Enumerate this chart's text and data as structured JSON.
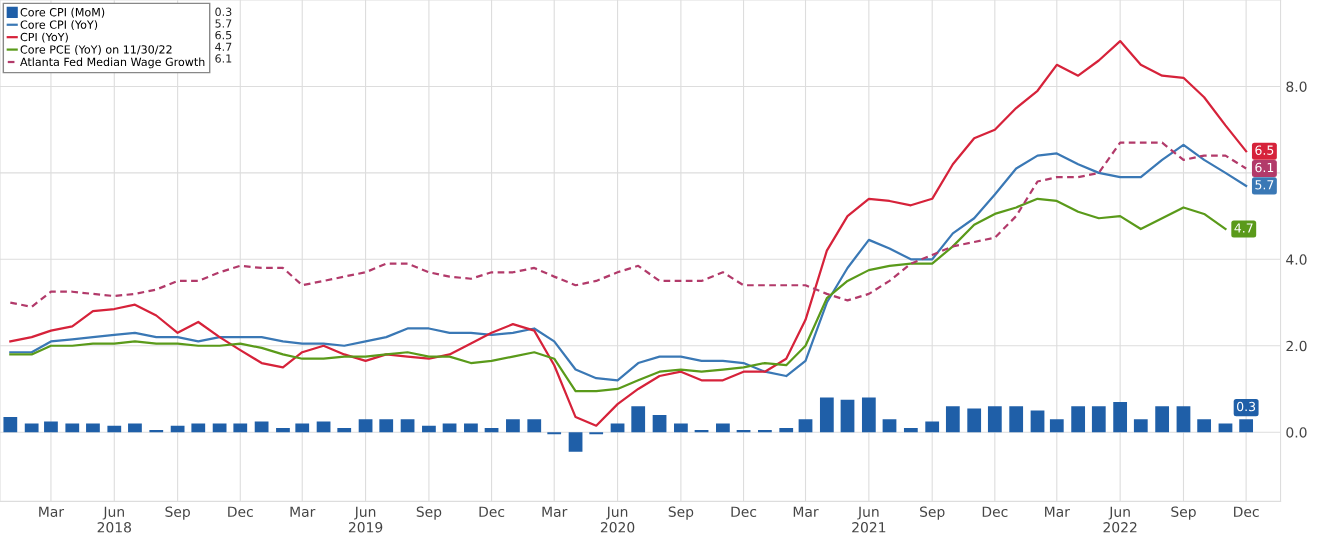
{
  "chart_data": {
    "type": "line",
    "x": [
      "2018-01",
      "2018-02",
      "2018-03",
      "2018-04",
      "2018-05",
      "2018-06",
      "2018-07",
      "2018-08",
      "2018-09",
      "2018-10",
      "2018-11",
      "2018-12",
      "2019-01",
      "2019-02",
      "2019-03",
      "2019-04",
      "2019-05",
      "2019-06",
      "2019-07",
      "2019-08",
      "2019-09",
      "2019-10",
      "2019-11",
      "2019-12",
      "2020-01",
      "2020-02",
      "2020-03",
      "2020-04",
      "2020-05",
      "2020-06",
      "2020-07",
      "2020-08",
      "2020-09",
      "2020-10",
      "2020-11",
      "2020-12",
      "2021-01",
      "2021-02",
      "2021-03",
      "2021-04",
      "2021-05",
      "2021-06",
      "2021-07",
      "2021-08",
      "2021-09",
      "2021-10",
      "2021-11",
      "2021-12",
      "2022-01",
      "2022-02",
      "2022-03",
      "2022-04",
      "2022-05",
      "2022-06",
      "2022-07",
      "2022-08",
      "2022-09",
      "2022-10",
      "2022-11",
      "2022-12"
    ],
    "series": [
      {
        "name": "Core CPI (MoM)",
        "type": "bar",
        "color": "#1f5fa8",
        "values": [
          0.35,
          0.2,
          0.25,
          0.2,
          0.2,
          0.15,
          0.2,
          0.05,
          0.15,
          0.2,
          0.2,
          0.2,
          0.25,
          0.1,
          0.2,
          0.25,
          0.1,
          0.3,
          0.3,
          0.3,
          0.15,
          0.2,
          0.2,
          0.1,
          0.3,
          0.3,
          -0.05,
          -0.45,
          -0.05,
          0.2,
          0.6,
          0.4,
          0.2,
          0.05,
          0.2,
          0.05,
          0.05,
          0.1,
          0.3,
          0.8,
          0.75,
          0.8,
          0.3,
          0.1,
          0.25,
          0.6,
          0.55,
          0.6,
          0.6,
          0.5,
          0.3,
          0.6,
          0.6,
          0.7,
          0.3,
          0.6,
          0.6,
          0.3,
          0.2,
          0.3
        ],
        "value_labels": [
          null,
          null,
          null,
          null,
          null,
          null,
          null,
          null,
          null,
          null,
          null,
          null,
          null,
          null,
          null,
          null,
          null,
          null,
          null,
          null,
          null,
          null,
          null,
          null,
          null,
          null,
          null,
          null,
          null,
          null,
          null,
          null,
          null,
          null,
          null,
          null,
          null,
          null,
          null,
          null,
          null,
          null,
          null,
          null,
          null,
          null,
          null,
          null,
          null,
          null,
          null,
          null,
          null,
          null,
          null,
          null,
          null,
          null,
          null,
          "0.3"
        ]
      },
      {
        "name": "Core CPI (YoY)",
        "color": "#3a78b5",
        "line_style": "solid",
        "values": [
          1.85,
          1.85,
          2.1,
          2.15,
          2.2,
          2.25,
          2.3,
          2.2,
          2.2,
          2.1,
          2.2,
          2.2,
          2.2,
          2.1,
          2.05,
          2.05,
          2.0,
          2.1,
          2.2,
          2.4,
          2.4,
          2.3,
          2.3,
          2.25,
          2.3,
          2.4,
          2.1,
          1.45,
          1.25,
          1.2,
          1.6,
          1.75,
          1.75,
          1.65,
          1.65,
          1.6,
          1.4,
          1.3,
          1.65,
          3.0,
          3.8,
          4.45,
          4.25,
          4.0,
          4.0,
          4.6,
          4.95,
          5.5,
          6.1,
          6.4,
          6.45,
          6.2,
          6.0,
          5.9,
          5.9,
          6.3,
          6.65,
          6.3,
          6.0,
          5.7
        ],
        "value_labels": [
          null,
          null,
          null,
          null,
          null,
          null,
          null,
          null,
          null,
          null,
          null,
          null,
          null,
          null,
          null,
          null,
          null,
          null,
          null,
          null,
          null,
          null,
          null,
          null,
          null,
          null,
          null,
          null,
          null,
          null,
          null,
          null,
          null,
          null,
          null,
          null,
          null,
          null,
          null,
          null,
          null,
          null,
          null,
          null,
          null,
          null,
          null,
          null,
          null,
          null,
          null,
          null,
          null,
          null,
          null,
          null,
          null,
          null,
          null,
          "5.7"
        ]
      },
      {
        "name": "CPI (YoY)",
        "color": "#d6223a",
        "line_style": "solid",
        "values": [
          2.1,
          2.2,
          2.35,
          2.45,
          2.8,
          2.85,
          2.95,
          2.7,
          2.3,
          2.55,
          2.2,
          1.9,
          1.6,
          1.5,
          1.85,
          2.0,
          1.8,
          1.65,
          1.8,
          1.75,
          1.7,
          1.8,
          2.05,
          2.3,
          2.5,
          2.35,
          1.55,
          0.35,
          0.15,
          0.65,
          1.0,
          1.3,
          1.4,
          1.2,
          1.2,
          1.4,
          1.4,
          1.7,
          2.6,
          4.2,
          5.0,
          5.4,
          5.35,
          5.25,
          5.4,
          6.2,
          6.8,
          7.0,
          7.5,
          7.9,
          8.5,
          8.25,
          8.6,
          9.05,
          8.5,
          8.25,
          8.2,
          7.75,
          7.1,
          6.5
        ],
        "value_labels": [
          null,
          null,
          null,
          null,
          null,
          null,
          null,
          null,
          null,
          null,
          null,
          null,
          null,
          null,
          null,
          null,
          null,
          null,
          null,
          null,
          null,
          null,
          null,
          null,
          null,
          null,
          null,
          null,
          null,
          null,
          null,
          null,
          null,
          null,
          null,
          null,
          null,
          null,
          null,
          null,
          null,
          null,
          null,
          null,
          null,
          null,
          null,
          null,
          null,
          null,
          null,
          null,
          null,
          null,
          null,
          null,
          null,
          null,
          null,
          "6.5"
        ]
      },
      {
        "name": "Core PCE (YoY) on 11/30/22",
        "color": "#5a9a1a",
        "line_style": "solid",
        "values": [
          1.8,
          1.8,
          2.0,
          2.0,
          2.05,
          2.05,
          2.1,
          2.05,
          2.05,
          2.0,
          2.0,
          2.05,
          1.95,
          1.8,
          1.7,
          1.7,
          1.75,
          1.75,
          1.8,
          1.85,
          1.75,
          1.75,
          1.6,
          1.65,
          1.75,
          1.85,
          1.7,
          0.95,
          0.95,
          1.0,
          1.2,
          1.4,
          1.45,
          1.4,
          1.45,
          1.5,
          1.6,
          1.55,
          2.0,
          3.1,
          3.5,
          3.75,
          3.85,
          3.9,
          3.9,
          4.3,
          4.8,
          5.05,
          5.2,
          5.4,
          5.35,
          5.1,
          4.95,
          5.0,
          4.7,
          4.95,
          5.2,
          5.05,
          4.7,
          null
        ],
        "value_labels": [
          null,
          null,
          null,
          null,
          null,
          null,
          null,
          null,
          null,
          null,
          null,
          null,
          null,
          null,
          null,
          null,
          null,
          null,
          null,
          null,
          null,
          null,
          null,
          null,
          null,
          null,
          null,
          null,
          null,
          null,
          null,
          null,
          null,
          null,
          null,
          null,
          null,
          null,
          null,
          null,
          null,
          null,
          null,
          null,
          null,
          null,
          null,
          null,
          null,
          null,
          null,
          null,
          null,
          null,
          null,
          null,
          null,
          null,
          "4.7",
          null
        ]
      },
      {
        "name": "Atlanta Fed Median Wage Growth",
        "color": "#b23a6a",
        "line_style": "dashed",
        "values": [
          3.0,
          2.9,
          3.25,
          3.25,
          3.2,
          3.15,
          3.2,
          3.3,
          3.5,
          3.5,
          3.7,
          3.85,
          3.8,
          3.8,
          3.4,
          3.5,
          3.6,
          3.7,
          3.9,
          3.9,
          3.7,
          3.6,
          3.55,
          3.7,
          3.7,
          3.8,
          3.6,
          3.4,
          3.5,
          3.7,
          3.85,
          3.5,
          3.5,
          3.5,
          3.7,
          3.4,
          3.4,
          3.4,
          3.4,
          3.2,
          3.05,
          3.2,
          3.5,
          3.9,
          4.1,
          4.3,
          4.4,
          4.5,
          5.0,
          5.8,
          5.9,
          5.9,
          6.0,
          6.7,
          6.7,
          6.7,
          6.3,
          6.4,
          6.4,
          6.1
        ],
        "value_labels": [
          null,
          null,
          null,
          null,
          null,
          null,
          null,
          null,
          null,
          null,
          null,
          null,
          null,
          null,
          null,
          null,
          null,
          null,
          null,
          null,
          null,
          null,
          null,
          null,
          null,
          null,
          null,
          null,
          null,
          null,
          null,
          null,
          null,
          null,
          null,
          null,
          null,
          null,
          null,
          null,
          null,
          null,
          null,
          null,
          null,
          null,
          null,
          null,
          null,
          null,
          null,
          null,
          null,
          null,
          null,
          null,
          null,
          null,
          null,
          "6.1"
        ]
      }
    ],
    "xlim": [
      "2017-12-17",
      "2023-01-20"
    ],
    "xticks": [
      {
        "value": "2018-03",
        "label": "Mar"
      },
      {
        "value": "2018-06",
        "label": "Jun\n2018"
      },
      {
        "value": "2018-09",
        "label": "Sep"
      },
      {
        "value": "2018-12",
        "label": "Dec"
      },
      {
        "value": "2019-03",
        "label": "Mar"
      },
      {
        "value": "2019-06",
        "label": "Jun\n2019"
      },
      {
        "value": "2019-09",
        "label": "Sep"
      },
      {
        "value": "2019-12",
        "label": "Dec"
      },
      {
        "value": "2020-03",
        "label": "Mar"
      },
      {
        "value": "2020-06",
        "label": "Jun\n2020"
      },
      {
        "value": "2020-09",
        "label": "Sep"
      },
      {
        "value": "2020-12",
        "label": "Dec"
      },
      {
        "value": "2021-03",
        "label": "Mar"
      },
      {
        "value": "2021-06",
        "label": "Jun\n2021"
      },
      {
        "value": "2021-09",
        "label": "Sep"
      },
      {
        "value": "2021-12",
        "label": "Dec"
      },
      {
        "value": "2022-03",
        "label": "Mar"
      },
      {
        "value": "2022-06",
        "label": "Jun\n2022"
      },
      {
        "value": "2022-09",
        "label": "Sep"
      },
      {
        "value": "2022-12",
        "label": "Dec"
      }
    ],
    "ylim": [
      -1.6,
      10.0
    ],
    "yticks": [
      {
        "value": 0,
        "label": "0.0"
      },
      {
        "value": 2,
        "label": "2.0"
      },
      {
        "value": 4,
        "label": "4.0"
      },
      {
        "value": 6,
        "label": null
      },
      {
        "value": 8,
        "label": "8.0"
      }
    ],
    "grid": true,
    "legend": "top left"
  }
}
